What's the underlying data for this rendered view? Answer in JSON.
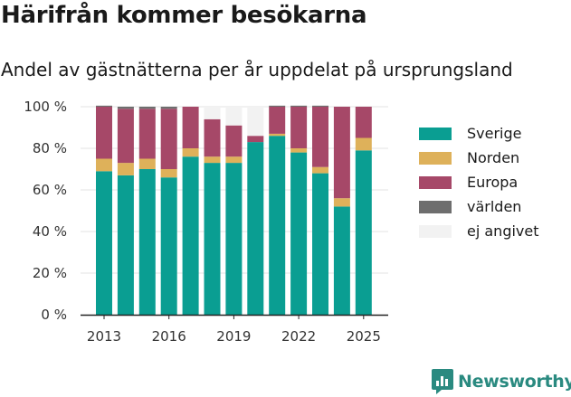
{
  "title": "Härifrån kommer besökarna",
  "subtitle": "Andel av gästnätterna per år uppdelat på ursprungsland",
  "brand": {
    "name": "Newsworthy",
    "icon": "newsworthy-logo-icon",
    "color": "#2a8a80"
  },
  "chart_data": {
    "type": "bar",
    "stacked": true,
    "categories": [
      "2013",
      "2014",
      "2015",
      "2016",
      "2017",
      "2018",
      "2019",
      "2020",
      "2021",
      "2022",
      "2023",
      "2024",
      "2025"
    ],
    "x_tick_labels": [
      "2013",
      "2016",
      "2019",
      "2022",
      "2025"
    ],
    "y_tick_labels": [
      "0 %",
      "20 %",
      "40 %",
      "60 %",
      "80 %",
      "100 %"
    ],
    "ylim": [
      0,
      100
    ],
    "grid": true,
    "legend_position": "right",
    "series": [
      {
        "name": "Sverige",
        "color": "#0a9e92",
        "values": [
          69,
          67,
          70,
          66,
          76,
          73,
          73,
          83,
          86,
          78,
          68,
          52,
          79
        ]
      },
      {
        "name": "Norden",
        "color": "#deb15a",
        "values": [
          6,
          6,
          5,
          4,
          4,
          3,
          3,
          0,
          1,
          2,
          3,
          4,
          6
        ]
      },
      {
        "name": "Europa",
        "color": "#a64868",
        "values": [
          25,
          26,
          24,
          29,
          20,
          18,
          15,
          3,
          13,
          20,
          29,
          44,
          15
        ]
      },
      {
        "name": "världen",
        "color": "#6e6e6e",
        "values": [
          0.5,
          1,
          1,
          1,
          0,
          0,
          0,
          0,
          0.5,
          0.5,
          0.5,
          0,
          0
        ]
      },
      {
        "name": "ej angivet",
        "color": "#f2f2f2",
        "values": [
          0,
          0,
          0,
          0,
          0,
          6,
          9,
          14,
          0,
          0,
          0,
          0,
          0
        ]
      }
    ]
  }
}
